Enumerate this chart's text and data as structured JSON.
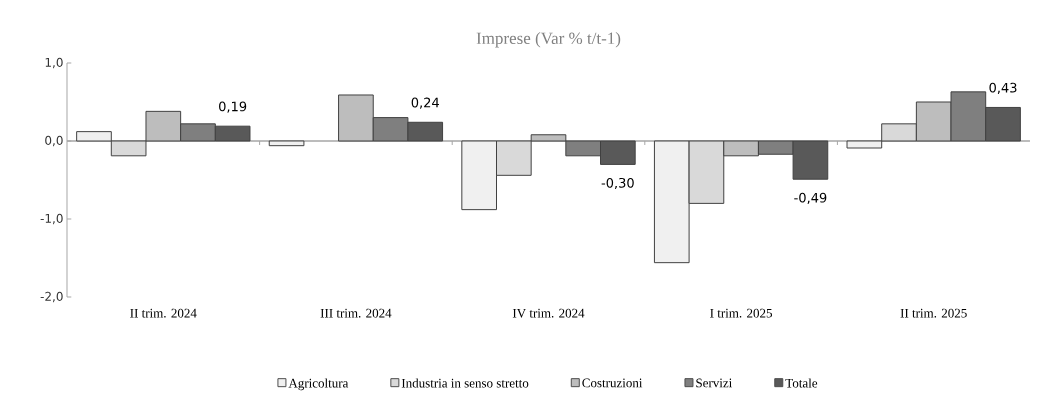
{
  "chart_data": {
    "type": "bar",
    "title": "Imprese (Var % t/t-1)",
    "categories": [
      "II trim. 2024",
      "III trim. 2024",
      "IV trim. 2024",
      "I trim. 2025",
      "II trim. 2025"
    ],
    "series": [
      {
        "name": "Agricoltura",
        "color": "#f0f0f0",
        "values": [
          0.12,
          -0.06,
          -0.88,
          -1.56,
          -0.09
        ]
      },
      {
        "name": "Industria in senso stretto",
        "color": "#d9d9d9",
        "values": [
          -0.19,
          null,
          -0.44,
          -0.8,
          0.22
        ]
      },
      {
        "name": "Costruzioni",
        "color": "#bdbdbd",
        "values": [
          0.38,
          0.59,
          0.08,
          -0.19,
          0.5
        ]
      },
      {
        "name": "Servizi",
        "color": "#7f7f7f",
        "values": [
          0.22,
          0.3,
          -0.19,
          -0.17,
          0.63
        ]
      },
      {
        "name": "Totale",
        "color": "#595959",
        "values": [
          0.19,
          0.24,
          -0.3,
          -0.49,
          0.43
        ],
        "value_labels": [
          "0,19",
          "0,24",
          "-0,30",
          "-0,49",
          "0,43"
        ]
      }
    ],
    "ylim": [
      -2.0,
      1.0
    ],
    "yticks": [
      {
        "value": -2.0,
        "label": "-2,0"
      },
      {
        "value": -1.0,
        "label": "-1,0"
      },
      {
        "value": 0.0,
        "label": "0,0"
      },
      {
        "value": 1.0,
        "label": "1,0"
      }
    ],
    "legend": "bottom"
  }
}
